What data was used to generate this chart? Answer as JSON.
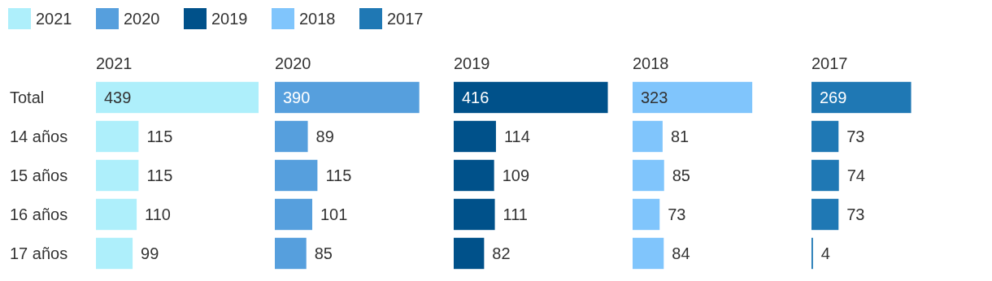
{
  "chart_data": [
    {
      "type": "bar",
      "orientation": "horizontal",
      "title": "2021",
      "categories": [
        "Total",
        "14 años",
        "15 años",
        "16 años",
        "17 años"
      ],
      "tick_labels": "y",
      "data_labels": true,
      "legend": "top left",
      "series": [
        {
          "name": "2021",
          "color": "#aeeffb",
          "values": [
            439,
            115,
            115,
            110,
            99
          ]
        }
      ]
    },
    {
      "type": "bar",
      "orientation": "horizontal",
      "title": "2020",
      "categories": [
        null,
        null,
        null,
        null,
        null
      ],
      "data_labels": true,
      "legend": "top left",
      "series": [
        {
          "name": "2020",
          "color": "#569fdd",
          "values": [
            390,
            89,
            115,
            101,
            85
          ]
        }
      ]
    },
    {
      "type": "bar",
      "orientation": "horizontal",
      "title": "2019",
      "categories": [
        null,
        null,
        null,
        null,
        null
      ],
      "data_labels": true,
      "legend": "top left",
      "series": [
        {
          "name": "2019",
          "color": "#00518a",
          "values": [
            416,
            114,
            109,
            111,
            82
          ]
        }
      ]
    },
    {
      "type": "bar",
      "orientation": "horizontal",
      "title": "2018",
      "categories": [
        null,
        null,
        null,
        null,
        null
      ],
      "data_labels": true,
      "legend": "top left",
      "series": [
        {
          "name": "2018",
          "color": "#80c5fc",
          "values": [
            323,
            81,
            85,
            73,
            84
          ]
        }
      ]
    },
    {
      "type": "bar",
      "orientation": "horizontal",
      "title": "2017",
      "categories": [
        null,
        null,
        null,
        null,
        null
      ],
      "data_labels": true,
      "legend": "top left",
      "series": [
        {
          "name": "2017",
          "color": "#1f78b4",
          "values": [
            269,
            73,
            74,
            73,
            4
          ]
        }
      ]
    }
  ]
}
